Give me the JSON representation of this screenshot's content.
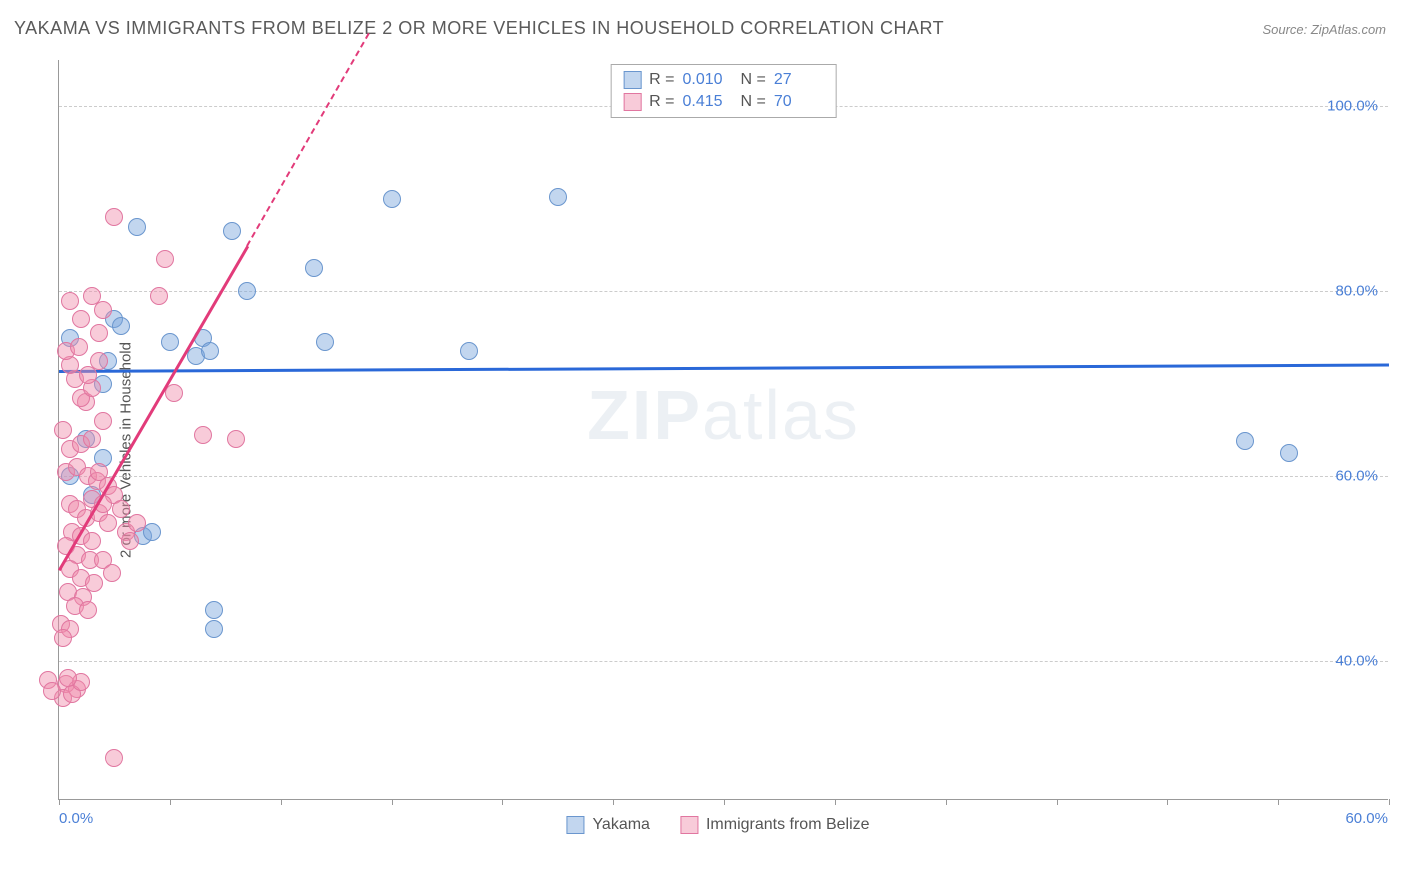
{
  "title": "YAKAMA VS IMMIGRANTS FROM BELIZE 2 OR MORE VEHICLES IN HOUSEHOLD CORRELATION CHART",
  "source": "Source: ZipAtlas.com",
  "y_axis_label": "2 or more Vehicles in Household",
  "watermark_bold": "ZIP",
  "watermark_light": "atlas",
  "chart": {
    "type": "scatter",
    "xlim": [
      0,
      60
    ],
    "ylim": [
      25,
      105
    ],
    "x_ticks": [
      0,
      5,
      10,
      15,
      20,
      25,
      30,
      35,
      40,
      45,
      50,
      55,
      60
    ],
    "y_grid": [
      40,
      60,
      80,
      100
    ],
    "y_tick_labels": [
      "40.0%",
      "60.0%",
      "80.0%",
      "100.0%"
    ],
    "x_min_label": "0.0%",
    "x_max_label": "60.0%",
    "tick_label_color": "#4a7fd6",
    "grid_color": "#cccccc",
    "axis_color": "#999999",
    "background": "#ffffff"
  },
  "series": [
    {
      "name": "Yakama",
      "fill": "rgba(120,165,220,0.45)",
      "stroke": "#6a96ce",
      "trend_color": "#2a68d8",
      "trend": {
        "x1": 0,
        "y1": 71.5,
        "x2": 60,
        "y2": 72.2,
        "dash_extend": false
      },
      "stats": {
        "R": "0.010",
        "N": "27"
      },
      "points": [
        [
          3.5,
          87
        ],
        [
          7.8,
          86.5
        ],
        [
          15,
          90
        ],
        [
          22.5,
          90.2
        ],
        [
          8.5,
          80
        ],
        [
          11.5,
          82.5
        ],
        [
          12,
          74.5
        ],
        [
          2.5,
          77
        ],
        [
          2.8,
          76.2
        ],
        [
          5,
          74.5
        ],
        [
          6.5,
          75
        ],
        [
          18.5,
          73.5
        ],
        [
          2,
          70
        ],
        [
          3.8,
          53.5
        ],
        [
          4.2,
          54
        ],
        [
          7,
          45.5
        ],
        [
          7,
          43.5
        ],
        [
          53.5,
          63.8
        ],
        [
          55.5,
          62.5
        ],
        [
          1.2,
          64
        ],
        [
          2,
          62
        ],
        [
          0.5,
          60
        ],
        [
          1.5,
          58
        ],
        [
          2.2,
          72.5
        ],
        [
          0.5,
          75
        ],
        [
          6.2,
          73
        ],
        [
          6.8,
          73.5
        ]
      ]
    },
    {
      "name": "Immigrants from Belize",
      "fill": "rgba(240,140,170,0.45)",
      "stroke": "#e176a0",
      "trend_color": "#e23b7a",
      "trend": {
        "x1": 0,
        "y1": 50,
        "x2": 8.5,
        "y2": 85,
        "dash_extend": true,
        "dash_x2": 14,
        "dash_y2": 108
      },
      "stats": {
        "R": "0.415",
        "N": "70"
      },
      "points": [
        [
          2.5,
          88
        ],
        [
          4.8,
          83.5
        ],
        [
          4.5,
          79.5
        ],
        [
          1.8,
          75.5
        ],
        [
          6.5,
          64.5
        ],
        [
          8,
          64
        ],
        [
          5.2,
          69
        ],
        [
          1.2,
          68
        ],
        [
          2.0,
          66
        ],
        [
          0.5,
          57
        ],
        [
          0.8,
          56.5
        ],
        [
          1.5,
          57.5
        ],
        [
          1.2,
          55.5
        ],
        [
          1.8,
          56
        ],
        [
          2.2,
          55
        ],
        [
          0.6,
          54
        ],
        [
          1.0,
          53.5
        ],
        [
          1.5,
          53
        ],
        [
          0.3,
          52.5
        ],
        [
          0.8,
          51.5
        ],
        [
          1.4,
          51
        ],
        [
          0.5,
          50
        ],
        [
          1.0,
          49
        ],
        [
          1.6,
          48.5
        ],
        [
          0.4,
          47.5
        ],
        [
          1.1,
          47
        ],
        [
          0.7,
          46
        ],
        [
          1.3,
          45.5
        ],
        [
          0.3,
          60.5
        ],
        [
          0.8,
          61
        ],
        [
          1.3,
          60
        ],
        [
          1.7,
          59.5
        ],
        [
          0.5,
          63
        ],
        [
          1.0,
          63.5
        ],
        [
          1.5,
          64
        ],
        [
          0.2,
          65
        ],
        [
          1.8,
          60.5
        ],
        [
          2.2,
          59
        ],
        [
          2.5,
          58
        ],
        [
          2.0,
          57
        ],
        [
          1.0,
          68.5
        ],
        [
          1.5,
          69.5
        ],
        [
          0.7,
          70.5
        ],
        [
          1.3,
          71
        ],
        [
          0.5,
          72
        ],
        [
          1.8,
          72.5
        ],
        [
          0.3,
          73.5
        ],
        [
          0.9,
          74
        ],
        [
          -0.5,
          38
        ],
        [
          0.3,
          37.5
        ],
        [
          0.8,
          37
        ],
        [
          0.2,
          36
        ],
        [
          0.6,
          36.5
        ],
        [
          1.0,
          37.8
        ],
        [
          -0.3,
          36.8
        ],
        [
          0.4,
          38.2
        ],
        [
          2.5,
          29.5
        ],
        [
          0.1,
          44
        ],
        [
          0.5,
          43.5
        ],
        [
          0.2,
          42.5
        ],
        [
          3.0,
          54
        ],
        [
          3.5,
          55
        ],
        [
          2.8,
          56.5
        ],
        [
          3.2,
          53
        ],
        [
          2.0,
          51
        ],
        [
          2.4,
          49.5
        ],
        [
          1.0,
          77
        ],
        [
          2.0,
          78
        ],
        [
          0.5,
          79
        ],
        [
          1.5,
          79.5
        ]
      ]
    }
  ],
  "legend": {
    "stat_R_label": "R =",
    "stat_N_label": "N =",
    "stat_value_color": "#4a7fd6"
  }
}
